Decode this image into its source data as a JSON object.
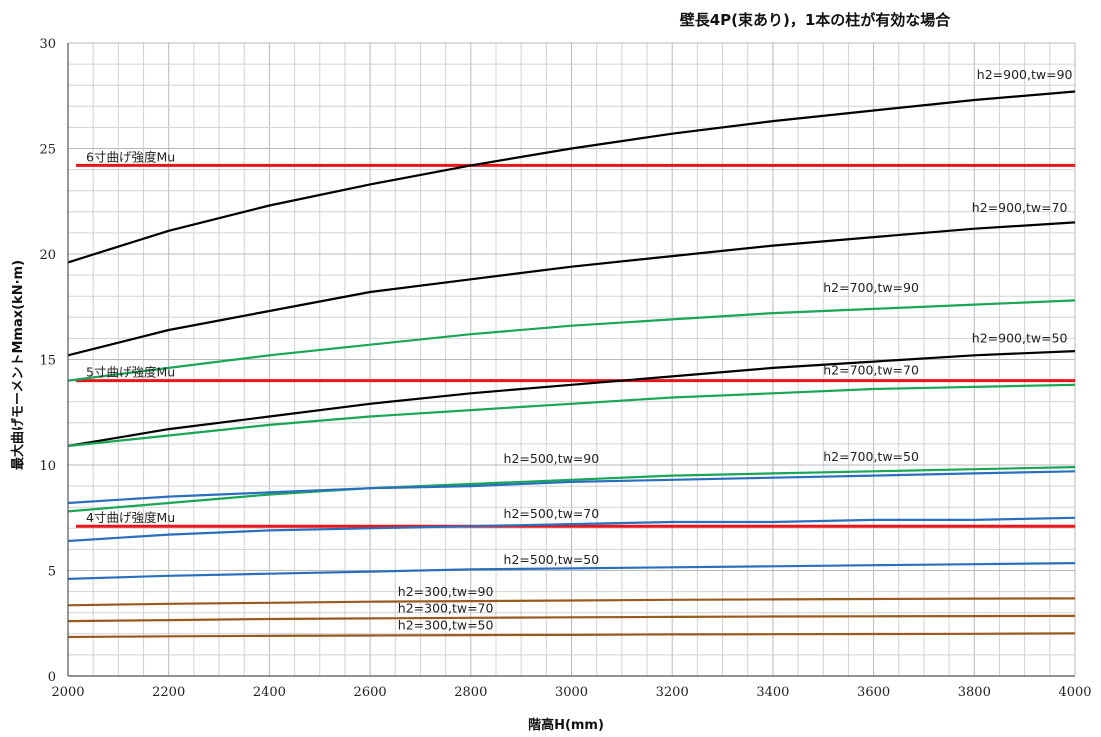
{
  "chart_data": {
    "type": "line",
    "title": "壁長4P(束あり)，1本の柱が有効な場合",
    "xlabel": "階高H(mm)",
    "ylabel": "最大曲げモーメントMmax(kN·m)",
    "xlim": [
      2000,
      4000
    ],
    "ylim": [
      0,
      30
    ],
    "x_ticks": [
      2000,
      2200,
      2400,
      2600,
      2800,
      3000,
      3200,
      3400,
      3600,
      3800,
      4000
    ],
    "y_ticks": [
      0,
      5,
      10,
      15,
      20,
      25,
      30
    ],
    "grid": true,
    "x": [
      2000,
      2200,
      2400,
      2600,
      2800,
      3000,
      3200,
      3400,
      3600,
      3800,
      4000
    ],
    "series": [
      {
        "name": "h2=900,tw=90",
        "color": "#000000",
        "values": [
          19.6,
          21.1,
          22.3,
          23.3,
          24.2,
          25.0,
          25.7,
          26.3,
          26.8,
          27.3,
          27.7
        ]
      },
      {
        "name": "h2=900,tw=70",
        "color": "#000000",
        "values": [
          15.2,
          16.4,
          17.3,
          18.2,
          18.8,
          19.4,
          19.9,
          20.4,
          20.8,
          21.2,
          21.5
        ]
      },
      {
        "name": "h2=700,tw=90",
        "color": "#19a657",
        "values": [
          14.0,
          14.6,
          15.2,
          15.7,
          16.2,
          16.6,
          16.9,
          17.2,
          17.4,
          17.6,
          17.8
        ]
      },
      {
        "name": "h2=900,tw=50",
        "color": "#000000",
        "values": [
          10.9,
          11.7,
          12.3,
          12.9,
          13.4,
          13.8,
          14.2,
          14.6,
          14.9,
          15.2,
          15.4
        ]
      },
      {
        "name": "h2=700,tw=70",
        "color": "#19a657",
        "values": [
          10.9,
          11.4,
          11.9,
          12.3,
          12.6,
          12.9,
          13.2,
          13.4,
          13.6,
          13.7,
          13.8
        ]
      },
      {
        "name": "h2=700,tw=50",
        "color": "#19a657",
        "values": [
          7.8,
          8.2,
          8.6,
          8.9,
          9.1,
          9.3,
          9.5,
          9.6,
          9.7,
          9.8,
          9.9
        ]
      },
      {
        "name": "h2=500,tw=90",
        "color": "#2a6fbe",
        "values": [
          8.2,
          8.5,
          8.7,
          8.9,
          9.0,
          9.2,
          9.3,
          9.4,
          9.5,
          9.6,
          9.7
        ]
      },
      {
        "name": "h2=500,tw=70",
        "color": "#2a6fbe",
        "values": [
          6.4,
          6.7,
          6.9,
          7.0,
          7.1,
          7.2,
          7.3,
          7.3,
          7.4,
          7.4,
          7.5
        ]
      },
      {
        "name": "h2=500,tw=50",
        "color": "#2a6fbe",
        "values": [
          4.6,
          4.75,
          4.85,
          4.95,
          5.05,
          5.1,
          5.15,
          5.2,
          5.25,
          5.3,
          5.35
        ]
      },
      {
        "name": "h2=300,tw=90",
        "color": "#9a5a1e",
        "values": [
          3.35,
          3.42,
          3.47,
          3.52,
          3.55,
          3.58,
          3.61,
          3.63,
          3.65,
          3.67,
          3.68
        ]
      },
      {
        "name": "h2=300,tw=70",
        "color": "#9a5a1e",
        "values": [
          2.6,
          2.65,
          2.7,
          2.73,
          2.76,
          2.78,
          2.8,
          2.82,
          2.83,
          2.84,
          2.85
        ]
      },
      {
        "name": "h2=300,tw=50",
        "color": "#9a5a1e",
        "values": [
          1.85,
          1.88,
          1.9,
          1.92,
          1.94,
          1.95,
          1.97,
          1.98,
          1.99,
          2.0,
          2.02
        ]
      }
    ],
    "reference_lines": [
      {
        "label": "6寸曲げ強度Mu",
        "value": 24.2,
        "color": "#e8161b"
      },
      {
        "label": "5寸曲げ強度Mu",
        "value": 14.0,
        "color": "#e8161b"
      },
      {
        "label": "4寸曲げ強度Mu",
        "value": 7.1,
        "color": "#e8161b"
      }
    ]
  }
}
